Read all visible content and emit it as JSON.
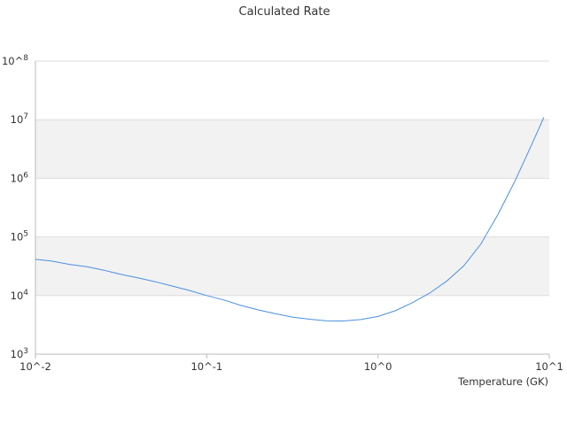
{
  "chart_data": {
    "type": "line",
    "title": "Calculated Rate",
    "xlabel": "Temperature (GK)",
    "ylabel": "",
    "x_scale": "log",
    "y_scale": "log",
    "xlim": [
      0.01,
      10
    ],
    "ylim": [
      1000,
      100000000
    ],
    "x_ticks": [
      {
        "value": 0.01,
        "label": "10^-2"
      },
      {
        "value": 0.1,
        "label": "10^-1"
      },
      {
        "value": 1,
        "label": "10^0"
      },
      {
        "value": 10,
        "label": "10^1"
      }
    ],
    "y_ticks": [
      {
        "value": 1000,
        "base": "10",
        "exp": "3"
      },
      {
        "value": 10000,
        "base": "10",
        "exp": "4"
      },
      {
        "value": 100000,
        "base": "10",
        "exp": "5"
      },
      {
        "value": 1000000,
        "base": "10",
        "exp": "6"
      },
      {
        "value": 10000000,
        "base": "10",
        "exp": "7"
      },
      {
        "value": 100000000,
        "base": "10^",
        "exp": "8"
      }
    ],
    "grid": "alternating horizontal bands",
    "legend": "none",
    "colors": {
      "line": "#4a90e2",
      "band": "#f2f2f2",
      "grid": "#dddddd",
      "axis": "#bbbbbb"
    },
    "series": [
      {
        "x": [
          0.01,
          0.0126,
          0.0158,
          0.02,
          0.0251,
          0.0316,
          0.0398,
          0.0501,
          0.0631,
          0.0794,
          0.1,
          0.126,
          0.158,
          0.2,
          0.251,
          0.316,
          0.398,
          0.501,
          0.631,
          0.794,
          1.0,
          1.26,
          1.58,
          2.0,
          2.51,
          3.16,
          3.98,
          5.01,
          6.31,
          7.94,
          9.3
        ],
        "y": [
          41500,
          38500,
          34000,
          31000,
          27000,
          23000,
          20000,
          17200,
          14500,
          12200,
          10000,
          8400,
          6800,
          5700,
          4900,
          4300,
          3950,
          3700,
          3680,
          3900,
          4400,
          5500,
          7500,
          11000,
          17500,
          32000,
          75000,
          240000,
          900000,
          3900000,
          11000000
        ]
      }
    ]
  }
}
